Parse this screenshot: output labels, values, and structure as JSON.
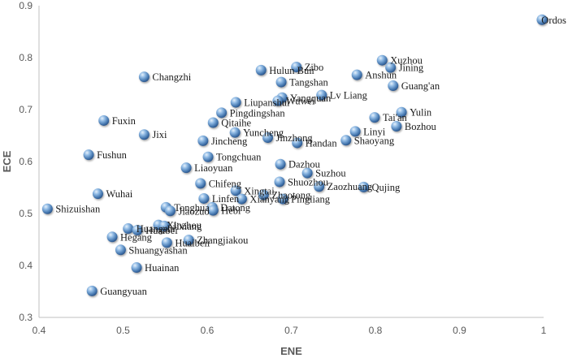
{
  "chart_data": {
    "type": "scatter",
    "title": "",
    "xlabel": "ENE",
    "ylabel": "ECE",
    "xlim": [
      0.4,
      1.0
    ],
    "ylim": [
      0.3,
      0.9
    ],
    "x_ticks": [
      "0.4",
      "0.5",
      "0.6",
      "0.7",
      "0.8",
      "0.9",
      "1"
    ],
    "y_ticks": [
      "0.3",
      "0.4",
      "0.5",
      "0.6",
      "0.7",
      "0.8",
      "0.9"
    ],
    "grid": false,
    "legend": "none",
    "marker_color": "#6a9fd4",
    "points": [
      {
        "label": "Ordos",
        "x": 0.998,
        "y": 0.873
      },
      {
        "label": "Xuzhou",
        "x": 0.808,
        "y": 0.795
      },
      {
        "label": "Jining",
        "x": 0.818,
        "y": 0.781
      },
      {
        "label": "Anshun",
        "x": 0.778,
        "y": 0.767
      },
      {
        "label": "Guang'an",
        "x": 0.821,
        "y": 0.746
      },
      {
        "label": "Zibo",
        "x": 0.706,
        "y": 0.782
      },
      {
        "label": "Hulun Buir",
        "x": 0.664,
        "y": 0.776
      },
      {
        "label": "Changzhi",
        "x": 0.525,
        "y": 0.763
      },
      {
        "label": "Tangshan",
        "x": 0.688,
        "y": 0.753
      },
      {
        "label": "Lv Liang",
        "x": 0.736,
        "y": 0.728
      },
      {
        "label": "Yangquan",
        "x": 0.689,
        "y": 0.723
      },
      {
        "label": "Wuwei",
        "x": 0.684,
        "y": 0.717
      },
      {
        "label": "Liupanshui",
        "x": 0.634,
        "y": 0.714
      },
      {
        "label": "Yulin",
        "x": 0.831,
        "y": 0.695
      },
      {
        "label": "Tai'an",
        "x": 0.799,
        "y": 0.685
      },
      {
        "label": "Pingdingshan",
        "x": 0.617,
        "y": 0.694
      },
      {
        "label": "Fuxin",
        "x": 0.477,
        "y": 0.679
      },
      {
        "label": "Qitaihe",
        "x": 0.607,
        "y": 0.675
      },
      {
        "label": "Bozhou",
        "x": 0.825,
        "y": 0.668
      },
      {
        "label": "Jixi",
        "x": 0.525,
        "y": 0.652
      },
      {
        "label": "Yuncheng",
        "x": 0.633,
        "y": 0.656
      },
      {
        "label": "Linyi",
        "x": 0.776,
        "y": 0.658
      },
      {
        "label": "Jinzhong",
        "x": 0.672,
        "y": 0.646
      },
      {
        "label": "Jincheng",
        "x": 0.595,
        "y": 0.64
      },
      {
        "label": "Handan",
        "x": 0.707,
        "y": 0.636
      },
      {
        "label": "Shaoyang",
        "x": 0.765,
        "y": 0.641
      },
      {
        "label": "Fushun",
        "x": 0.459,
        "y": 0.613
      },
      {
        "label": "Tongchuan",
        "x": 0.601,
        "y": 0.609
      },
      {
        "label": "Dazhou",
        "x": 0.687,
        "y": 0.595
      },
      {
        "label": "Liaoyuan",
        "x": 0.575,
        "y": 0.588
      },
      {
        "label": "Suzhou",
        "x": 0.719,
        "y": 0.578
      },
      {
        "label": "Shuozhou",
        "x": 0.686,
        "y": 0.561
      },
      {
        "label": "Chifeng",
        "x": 0.592,
        "y": 0.558
      },
      {
        "label": "Zaozhuang",
        "x": 0.733,
        "y": 0.552
      },
      {
        "label": "Qujing",
        "x": 0.786,
        "y": 0.551
      },
      {
        "label": "Xingtai",
        "x": 0.634,
        "y": 0.544
      },
      {
        "label": "Wuhai",
        "x": 0.47,
        "y": 0.538
      },
      {
        "label": "Zhaotong",
        "x": 0.667,
        "y": 0.536
      },
      {
        "label": "Linfen",
        "x": 0.596,
        "y": 0.529
      },
      {
        "label": "Xianyang",
        "x": 0.641,
        "y": 0.528
      },
      {
        "label": "Pingliang",
        "x": 0.69,
        "y": 0.528
      },
      {
        "label": "Tonghua",
        "x": 0.551,
        "y": 0.512
      },
      {
        "label": "Datong",
        "x": 0.606,
        "y": 0.512
      },
      {
        "label": "Shizuishan",
        "x": 0.41,
        "y": 0.509
      },
      {
        "label": "Jiaozuo",
        "x": 0.556,
        "y": 0.505
      },
      {
        "label": "Hebi",
        "x": 0.607,
        "y": 0.506
      },
      {
        "label": "Xinzhou",
        "x": 0.542,
        "y": 0.478
      },
      {
        "label": "Jixiang",
        "x": 0.549,
        "y": 0.476
      },
      {
        "label": "Huangshi",
        "x": 0.506,
        "y": 0.471
      },
      {
        "label": "Huaibei",
        "x": 0.517,
        "y": 0.468
      },
      {
        "label": "Hegang",
        "x": 0.487,
        "y": 0.455
      },
      {
        "label": "Huaibeii",
        "x": 0.552,
        "y": 0.444
      },
      {
        "label": "Zhangjiakou",
        "x": 0.578,
        "y": 0.449
      },
      {
        "label": "Shuangyashan",
        "x": 0.497,
        "y": 0.43
      },
      {
        "label": "Huainan",
        "x": 0.516,
        "y": 0.396
      },
      {
        "label": "Guangyuan",
        "x": 0.463,
        "y": 0.351
      }
    ]
  }
}
